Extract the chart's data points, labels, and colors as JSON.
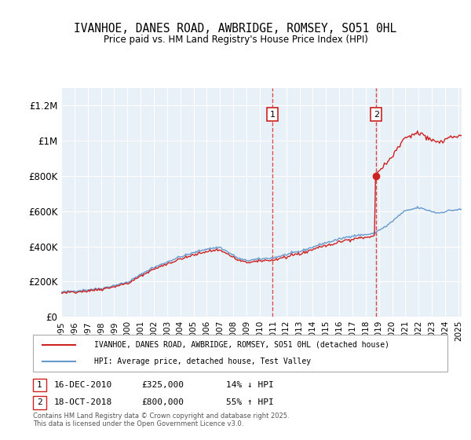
{
  "title": "IVANHOE, DANES ROAD, AWBRIDGE, ROMSEY, SO51 0HL",
  "subtitle": "Price paid vs. HM Land Registry's House Price Index (HPI)",
  "bg_color": "#e8f0f8",
  "plot_bg_color": "#e8f0f8",
  "hpi_color": "#6699cc",
  "price_color": "#cc2222",
  "marker1_date_idx": 192,
  "marker2_date_idx": 287,
  "marker1_label": "1",
  "marker2_label": "2",
  "marker1_info": "16-DEC-2010    £325,000    14% ↓ HPI",
  "marker2_info": "18-OCT-2018    £800,000    55% ↑ HPI",
  "legend_house": "IVANHOE, DANES ROAD, AWBRIDGE, ROMSEY, SO51 0HL (detached house)",
  "legend_hpi": "HPI: Average price, detached house, Test Valley",
  "footer": "Contains HM Land Registry data © Crown copyright and database right 2025.\nThis data is licensed under the Open Government Licence v3.0.",
  "ylim": [
    0,
    1300000
  ],
  "yticks": [
    0,
    200000,
    400000,
    600000,
    800000,
    1000000,
    1200000
  ],
  "ytick_labels": [
    "£0",
    "£200K",
    "£400K",
    "£600K",
    "£800K",
    "£1M",
    "£1.2M"
  ]
}
